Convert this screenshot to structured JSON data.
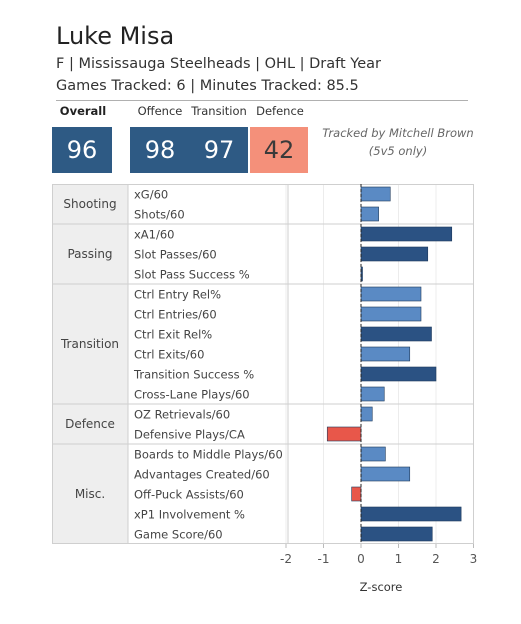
{
  "header": {
    "name": "Luke Misa",
    "subtitle": "F | Mississauga Steelheads | OHL | Draft Year",
    "tracking": "Games Tracked: 6 | Minutes Tracked: 85.5",
    "tracker_note_line1": "Tracked by Mitchell Brown",
    "tracker_note_line2": "(5v5 only)"
  },
  "scores": {
    "overall": {
      "label": "Overall",
      "value": "96"
    },
    "offence": {
      "label": "Offence",
      "value": "98"
    },
    "transition": {
      "label": "Transition",
      "value": "97"
    },
    "defence": {
      "label": "Defence",
      "value": "42"
    }
  },
  "colors": {
    "tile_blue": "#2e5a84",
    "tile_red": "#f4907a",
    "bar_light_blue": "#5a8ac4",
    "bar_dark_blue": "#2b5283",
    "bar_red": "#e8574a",
    "group_bg": "#eeeeee"
  },
  "chart_data": {
    "type": "bar",
    "orientation": "horizontal",
    "xlabel": "Z-score",
    "xlim": [
      -2.2,
      3.1
    ],
    "xticks": [
      -2,
      -1,
      0,
      1,
      2,
      3
    ],
    "groups": [
      {
        "name": "Shooting",
        "metrics": [
          {
            "label": "xG/60",
            "value": 0.78,
            "shade": "light"
          },
          {
            "label": "Shots/60",
            "value": 0.47,
            "shade": "light"
          }
        ]
      },
      {
        "name": "Passing",
        "metrics": [
          {
            "label": "xA1/60",
            "value": 2.42,
            "shade": "dark"
          },
          {
            "label": "Slot Passes/60",
            "value": 1.78,
            "shade": "dark"
          },
          {
            "label": "Slot Pass Success %",
            "value": 0.04,
            "shade": "dark"
          }
        ]
      },
      {
        "name": "Transition",
        "metrics": [
          {
            "label": "Ctrl Entry Rel%",
            "value": 1.6,
            "shade": "light"
          },
          {
            "label": "Ctrl Entries/60",
            "value": 1.6,
            "shade": "light"
          },
          {
            "label": "Ctrl Exit Rel%",
            "value": 1.88,
            "shade": "dark"
          },
          {
            "label": "Ctrl Exits/60",
            "value": 1.3,
            "shade": "light"
          },
          {
            "label": "Transition Success %",
            "value": 2.0,
            "shade": "dark"
          },
          {
            "label": "Cross-Lane Plays/60",
            "value": 0.62,
            "shade": "light"
          }
        ]
      },
      {
        "name": "Defence",
        "metrics": [
          {
            "label": "OZ Retrievals/60",
            "value": 0.3,
            "shade": "light"
          },
          {
            "label": "Defensive Plays/CA",
            "value": -0.9,
            "shade": "red"
          }
        ]
      },
      {
        "name": "Misc.",
        "metrics": [
          {
            "label": "Boards to Middle Plays/60",
            "value": 0.65,
            "shade": "light"
          },
          {
            "label": "Advantages Created/60",
            "value": 1.3,
            "shade": "light"
          },
          {
            "label": "Off-Puck Assists/60",
            "value": -0.25,
            "shade": "red"
          },
          {
            "label": "xP1 Involvement %",
            "value": 2.67,
            "shade": "dark"
          },
          {
            "label": "Game Score/60",
            "value": 1.9,
            "shade": "dark"
          }
        ]
      }
    ]
  }
}
